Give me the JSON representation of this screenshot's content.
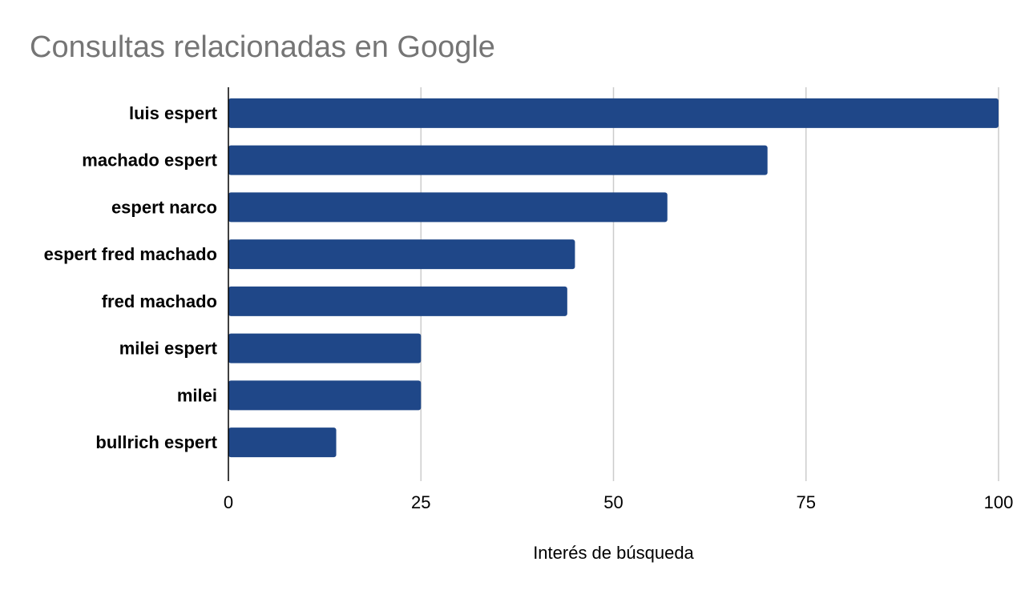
{
  "chart_data": {
    "type": "bar",
    "orientation": "horizontal",
    "title": "Consultas relacionadas en Google",
    "xlabel": "Interés de búsqueda",
    "ylabel": "",
    "categories": [
      "luis espert",
      "machado espert",
      "espert narco",
      "espert fred machado",
      "fred machado",
      "milei espert",
      "milei",
      "bullrich espert"
    ],
    "values": [
      100,
      70,
      57,
      45,
      44,
      25,
      25,
      14
    ],
    "xlim": [
      0,
      100
    ],
    "xticks": [
      0,
      25,
      50,
      75,
      100
    ],
    "grid": "vertical",
    "legend": "none",
    "colors": {
      "bar": "#1f4788",
      "grid": "#cccccc",
      "axis": "#000000",
      "title": "#757575"
    }
  }
}
